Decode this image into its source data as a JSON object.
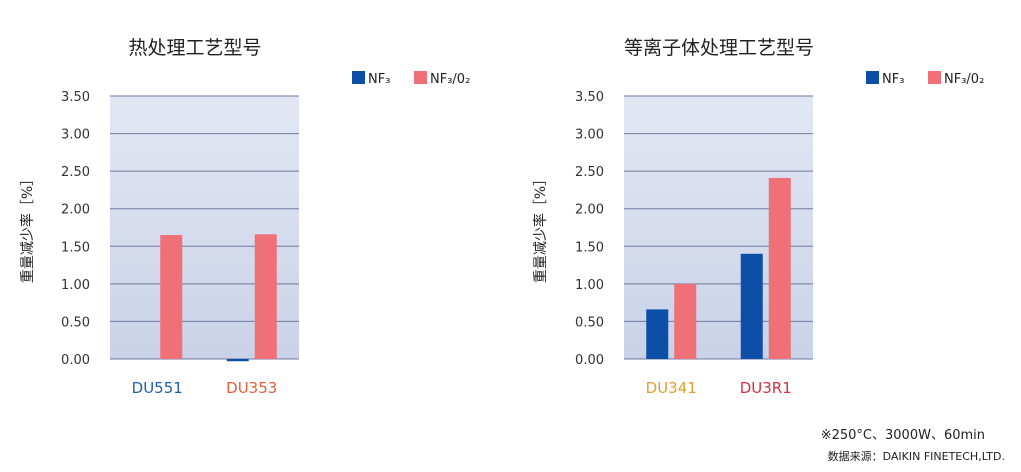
{
  "footnote": "※250°C、3000W、60min",
  "source": "数据来源：DAIKIN FINETECH,LTD.",
  "colors": {
    "nf3": "#0d4ea6",
    "nf3_o2": "#f07078",
    "plot_bg_top": "#e3e7f3",
    "plot_bg_bottom": "#c9d2e8"
  },
  "chart_data": [
    {
      "type": "bar",
      "title": "热处理工艺型号",
      "ylabel": "重量减少率［%］",
      "ylim": [
        0,
        3.5
      ],
      "yticks": [
        "0.00",
        "0.50",
        "1.00",
        "1.50",
        "2.00",
        "2.50",
        "3.00",
        "3.50"
      ],
      "categories": [
        "DU551",
        "DU353"
      ],
      "category_colors": [
        "#1f5fb0",
        "#e0603a"
      ],
      "series": [
        {
          "name": "NF₃",
          "color": "#0d4ea6",
          "values": [
            0.0,
            -0.03
          ]
        },
        {
          "name": "NF₃/0₂",
          "color": "#f07078",
          "values": [
            1.65,
            1.66
          ]
        }
      ],
      "grid": true,
      "legend": "top-right"
    },
    {
      "type": "bar",
      "title": "等离子体处理工艺型号",
      "ylabel": "重量减少率［%］",
      "ylim": [
        0,
        3.5
      ],
      "yticks": [
        "0.00",
        "0.50",
        "1.00",
        "1.50",
        "2.00",
        "2.50",
        "3.00",
        "3.50"
      ],
      "categories": [
        "DU341",
        "DU3R1"
      ],
      "category_colors": [
        "#e0a030",
        "#d83040"
      ],
      "series": [
        {
          "name": "NF₃",
          "color": "#0d4ea6",
          "values": [
            0.66,
            1.4
          ]
        },
        {
          "name": "NF₃/0₂",
          "color": "#f07078",
          "values": [
            1.0,
            2.41
          ]
        }
      ],
      "grid": true,
      "legend": "top-right"
    }
  ]
}
